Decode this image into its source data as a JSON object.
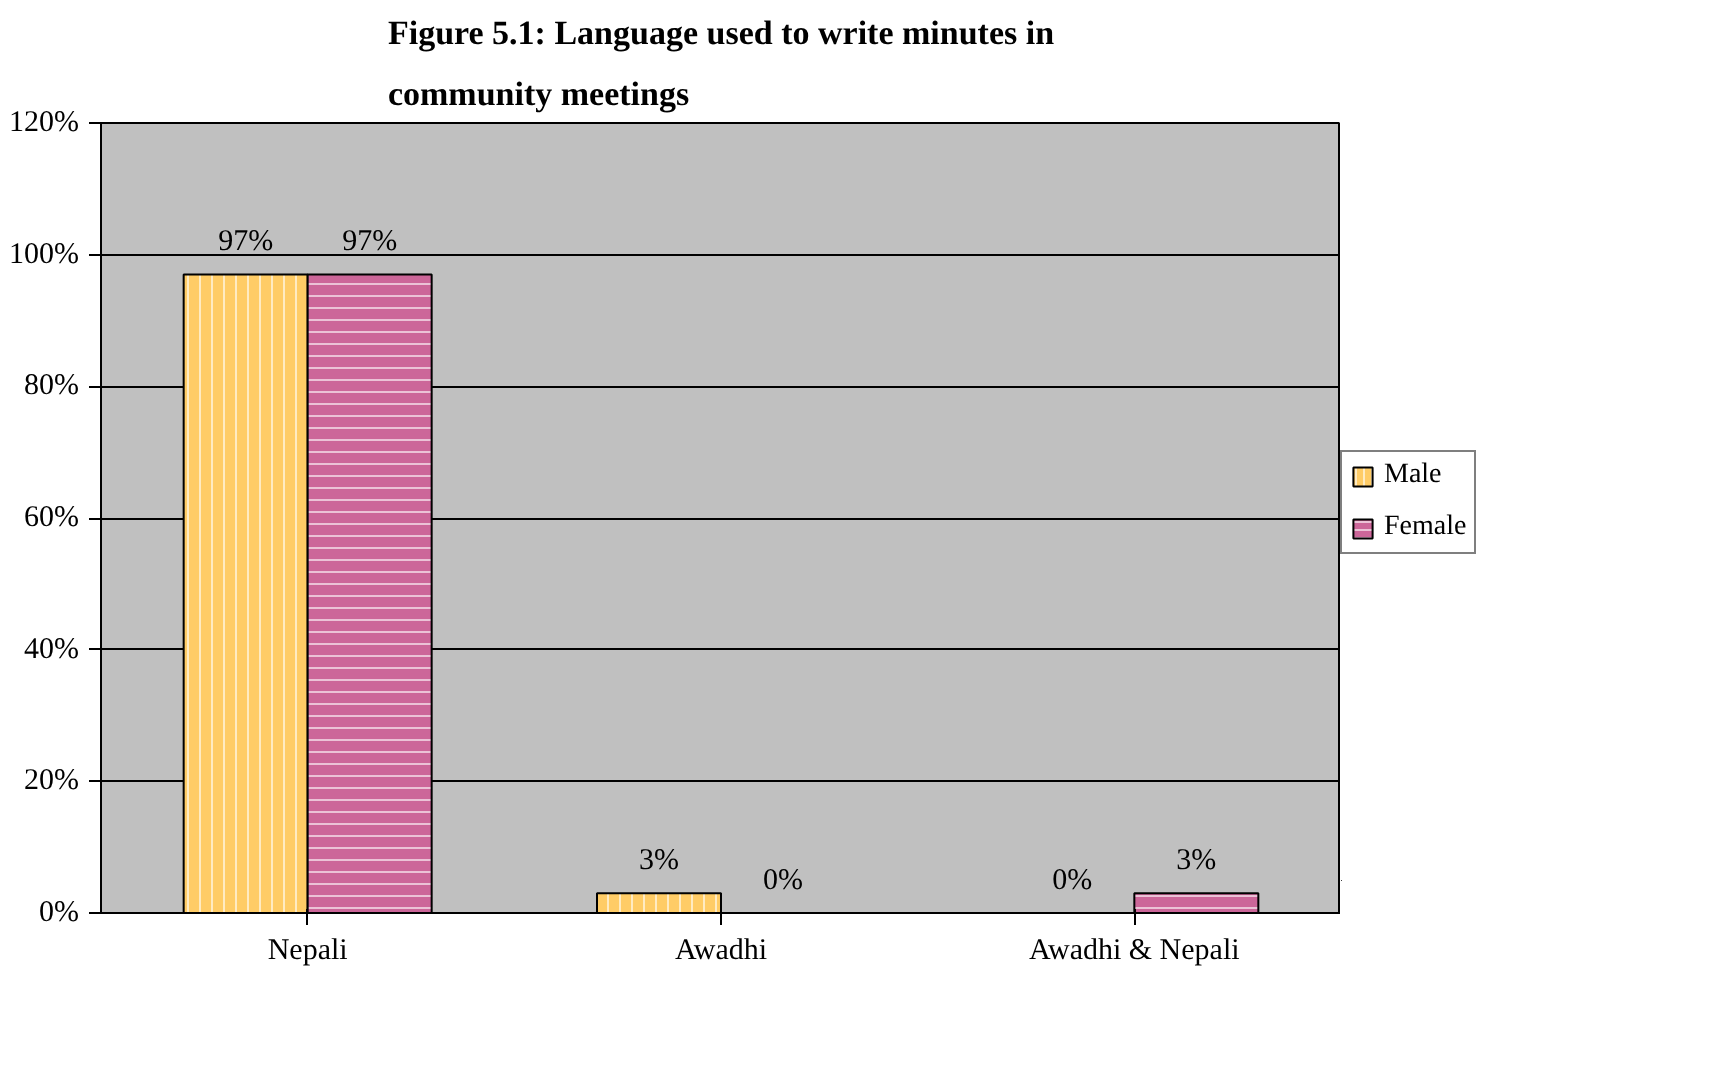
{
  "chart_data": {
    "type": "bar",
    "title": "Figure 5.1: Language used to write minutes in\ncommunity meetings",
    "categories": [
      "Nepali",
      "Awadhi",
      "Awadhi & Nepali"
    ],
    "series": [
      {
        "name": "Male",
        "color": "#ffcc66",
        "values": [
          97,
          3,
          0
        ],
        "value_labels": [
          "97%",
          "3%",
          "0%"
        ]
      },
      {
        "name": "Female",
        "color": "#cc6699",
        "values": [
          97,
          0,
          3
        ],
        "value_labels": [
          "97%",
          "0%",
          "3%"
        ]
      }
    ],
    "ylim": [
      0,
      120
    ],
    "yticks": [
      {
        "value": 0,
        "label": "0%"
      },
      {
        "value": 20,
        "label": "20%"
      },
      {
        "value": 40,
        "label": "40%"
      },
      {
        "value": 60,
        "label": "60%"
      },
      {
        "value": 80,
        "label": "80%"
      },
      {
        "value": 100,
        "label": "100%"
      },
      {
        "value": 120,
        "label": "120%"
      }
    ],
    "grid": "y",
    "legend": "right"
  }
}
